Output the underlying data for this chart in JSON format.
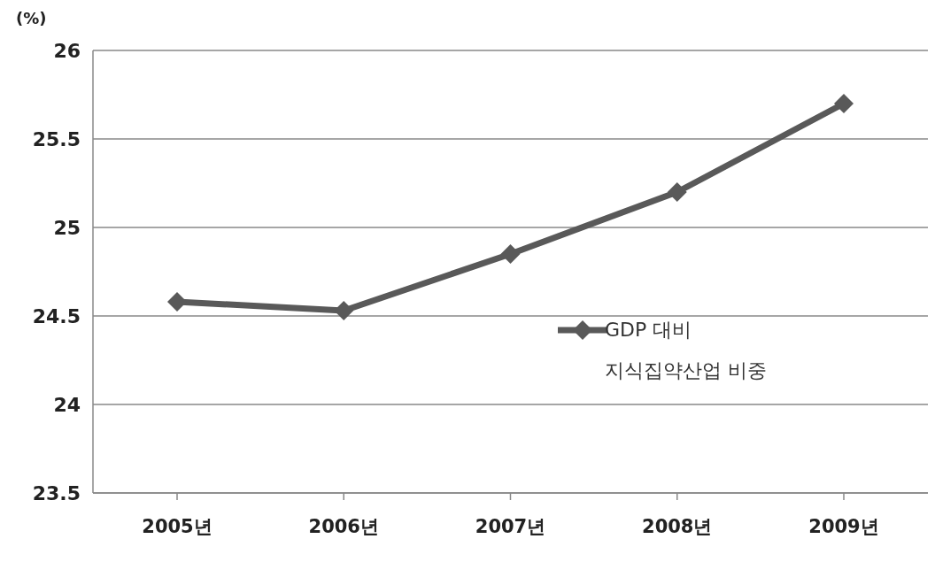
{
  "chart_data": {
    "type": "line",
    "ylabel": "(%)",
    "categories": [
      "2005년",
      "2006년",
      "2007년",
      "2008년",
      "2009년"
    ],
    "series": [
      {
        "name": "GDP 대비 지식집약산업 비중",
        "color": "#595959",
        "values": [
          24.58,
          24.53,
          24.85,
          25.2,
          25.7
        ]
      }
    ],
    "ylim": [
      23.5,
      26
    ],
    "yticks": [
      23.5,
      24,
      24.5,
      25,
      25.5,
      26
    ],
    "grid": "y",
    "legend": "right",
    "marker": "diamond",
    "line_style": "solid"
  }
}
